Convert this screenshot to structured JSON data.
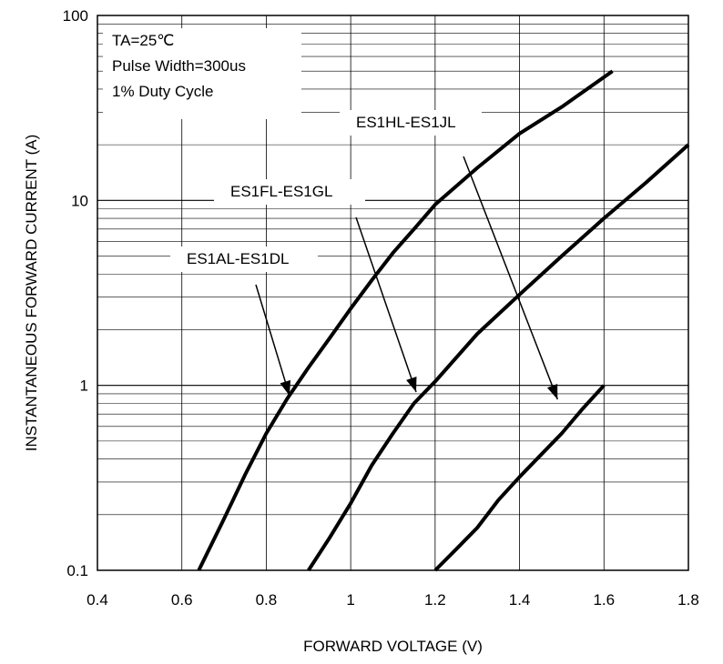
{
  "chart_data": {
    "type": "line",
    "title": "",
    "xlabel": "FORWARD VOLTAGE (V)",
    "ylabel": "INSTANTANEOUS FORWARD CURRENT (A)",
    "xlim": [
      0.4,
      1.8
    ],
    "ylim": [
      0.1,
      100
    ],
    "y_scale": "log",
    "grid": true,
    "x_ticks": [
      0.4,
      0.6,
      0.8,
      1.0,
      1.2,
      1.4,
      1.6,
      1.8
    ],
    "x_tick_labels": [
      "0.4",
      "0.6",
      "0.8",
      "1",
      "1.2",
      "1.4",
      "1.6",
      "1.8"
    ],
    "y_ticks": [
      0.1,
      1,
      10,
      100
    ],
    "y_tick_labels": [
      "0.1",
      "1",
      "10",
      "100"
    ],
    "annotations": [
      "TA=25℃",
      "Pulse Width=300us",
      "1% Duty Cycle"
    ],
    "series": [
      {
        "name": "ES1AL-ES1DL",
        "x": [
          0.64,
          0.7,
          0.75,
          0.8,
          0.85,
          0.9,
          0.95,
          1.0,
          1.05,
          1.1,
          1.15,
          1.2,
          1.3,
          1.4,
          1.5,
          1.62
        ],
        "y": [
          0.1,
          0.19,
          0.33,
          0.55,
          0.85,
          1.25,
          1.8,
          2.6,
          3.7,
          5.2,
          7.0,
          9.5,
          15,
          23,
          32,
          50
        ]
      },
      {
        "name": "ES1FL-ES1GL",
        "x": [
          0.9,
          0.95,
          1.0,
          1.05,
          1.1,
          1.15,
          1.2,
          1.3,
          1.4,
          1.5,
          1.6,
          1.7,
          1.8
        ],
        "y": [
          0.1,
          0.15,
          0.23,
          0.37,
          0.55,
          0.8,
          1.05,
          1.9,
          3.1,
          5.0,
          8.0,
          12.5,
          20
        ]
      },
      {
        "name": "ES1HL-ES1JL",
        "x": [
          1.2,
          1.25,
          1.3,
          1.35,
          1.4,
          1.45,
          1.5,
          1.55,
          1.6
        ],
        "y": [
          0.1,
          0.13,
          0.17,
          0.24,
          0.32,
          0.42,
          0.55,
          0.75,
          1.0
        ]
      }
    ]
  }
}
